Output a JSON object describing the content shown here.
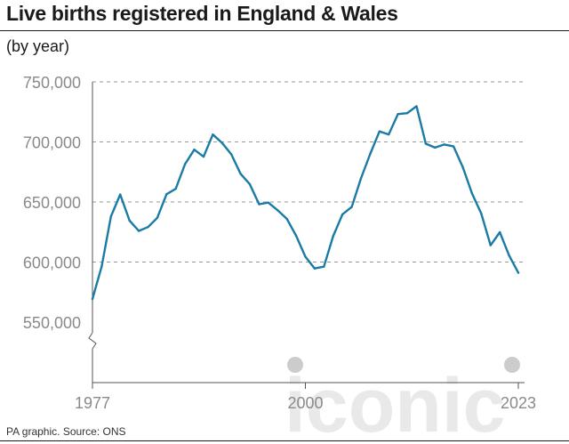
{
  "title": "Live births registered in England & Wales",
  "subtitle": "(by year)",
  "source": "PA graphic. Source: ONS",
  "watermark": "iconic",
  "colors": {
    "line": "#1a7ba4",
    "grid": "#9a9a9a",
    "tick_text": "#8a8a8a",
    "axis": "#555555",
    "watermark": "#cfcfcf"
  },
  "chart_data": {
    "type": "line",
    "title": "Live births registered in England & Wales",
    "subtitle": "(by year)",
    "xlabel": "",
    "ylabel": "",
    "x_ticks": [
      "1977",
      "2000",
      "2023"
    ],
    "y_ticks": [
      "750,000",
      "700,000",
      "650,000",
      "600,000",
      "550,000"
    ],
    "y_tick_values": [
      750000,
      700000,
      650000,
      600000,
      550000
    ],
    "ylim": [
      500000,
      750000
    ],
    "y_axis_break": true,
    "grid": "horizontal dashed",
    "series": [
      {
        "x": [
          1977,
          1978,
          1979,
          1980,
          1981,
          1982,
          1983,
          1984,
          1985,
          1986,
          1987,
          1988,
          1989,
          1990,
          1991,
          1992,
          1993,
          1994,
          1995,
          1996,
          1997,
          1998,
          1999,
          2000,
          2001,
          2002,
          2003,
          2004,
          2005,
          2006,
          2007,
          2008,
          2009,
          2010,
          2011,
          2012,
          2013,
          2014,
          2015,
          2016,
          2017,
          2018,
          2019,
          2020,
          2021,
          2022,
          2023
        ],
        "values": [
          569259,
          596418,
          638028,
          656234,
          634492,
          625931,
          629134,
          636818,
          656417,
          661018,
          681511,
          693577,
          687725,
          706140,
          699217,
          689656,
          673467,
          664726,
          648138,
          649485,
          643095,
          635901,
          621872,
          604441,
          594634,
          596122,
          621469,
          639721,
          645835,
          669601,
          690013,
          708711,
          706248,
          723165,
          723913,
          729674,
          698512,
          695233,
          697852,
          696271,
          679106,
          657076,
          640370,
          613936,
          624828,
          605479,
          591072
        ]
      }
    ]
  }
}
